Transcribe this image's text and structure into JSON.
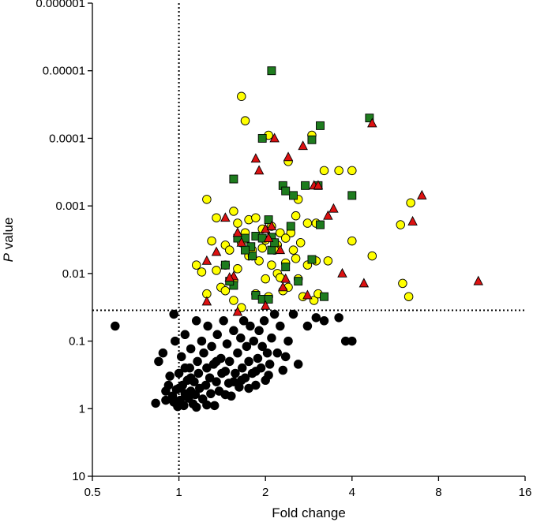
{
  "chart_data": {
    "type": "scatter",
    "title": "",
    "xlabel": "Fold change",
    "ylabel_italic": "P",
    "ylabel_rest": " value",
    "x_scale": "log2",
    "y_scale": "log10-reversed",
    "xlim": [
      0.5,
      16
    ],
    "ylim": [
      10,
      1e-06
    ],
    "x_ticks": [
      0.5,
      1,
      2,
      4,
      8,
      16
    ],
    "x_tick_labels": [
      "0.5",
      "1",
      "2",
      "4",
      "8",
      "16"
    ],
    "y_ticks": [
      10,
      1,
      0.1,
      0.01,
      0.001,
      0.0001,
      1e-05,
      1e-06
    ],
    "y_tick_labels": [
      "10",
      "1",
      "0.1",
      "0.01",
      "0.001",
      "0.0001",
      "0.00001",
      "0.000001"
    ],
    "thresholds": {
      "fold_change": 1,
      "p_value": 0.035
    },
    "grid": false,
    "legend": "none",
    "series": [
      {
        "marker": "circle",
        "color": "#000000",
        "points": [
          [
            0.6,
            0.06
          ],
          [
            0.83,
            0.83
          ],
          [
            0.85,
            0.2
          ],
          [
            0.88,
            0.15
          ],
          [
            0.9,
            0.75
          ],
          [
            0.92,
            0.45
          ],
          [
            0.93,
            0.33
          ],
          [
            0.95,
            0.65
          ],
          [
            0.96,
            0.04
          ],
          [
            0.96,
            0.8
          ],
          [
            0.97,
            0.1
          ],
          [
            0.98,
            0.52
          ],
          [
            0.99,
            0.93
          ],
          [
            1.0,
            0.3
          ],
          [
            1.01,
            0.75
          ],
          [
            1.02,
            0.17
          ],
          [
            1.03,
            0.45
          ],
          [
            1.04,
            0.9
          ],
          [
            1.05,
            0.6
          ],
          [
            1.05,
            0.08
          ],
          [
            1.07,
            0.38
          ],
          [
            1.08,
            0.7
          ],
          [
            1.09,
            0.25
          ],
          [
            1.1,
            0.55
          ],
          [
            1.1,
            0.13
          ],
          [
            1.12,
            0.85
          ],
          [
            1.13,
            0.4
          ],
          [
            1.14,
            0.62
          ],
          [
            1.15,
            0.05
          ],
          [
            1.16,
            0.2
          ],
          [
            1.17,
            0.3
          ],
          [
            1.18,
            0.5
          ],
          [
            1.2,
            0.1
          ],
          [
            1.21,
            0.72
          ],
          [
            1.22,
            0.15
          ],
          [
            1.24,
            0.45
          ],
          [
            1.25,
            0.25
          ],
          [
            1.26,
            0.06
          ],
          [
            1.28,
            0.35
          ],
          [
            1.29,
            0.6
          ],
          [
            1.3,
            0.12
          ],
          [
            1.32,
            0.22
          ],
          [
            1.33,
            0.9
          ],
          [
            1.35,
            0.4
          ],
          [
            1.36,
            0.08
          ],
          [
            1.38,
            0.55
          ],
          [
            1.4,
            0.18
          ],
          [
            1.41,
            0.3
          ],
          [
            1.43,
            0.05
          ],
          [
            1.45,
            0.28
          ],
          [
            1.47,
            0.11
          ],
          [
            1.49,
            0.42
          ],
          [
            1.5,
            0.2
          ],
          [
            1.52,
            0.65
          ],
          [
            1.55,
            0.07
          ],
          [
            1.57,
            0.3
          ],
          [
            1.6,
            0.15
          ],
          [
            1.62,
            0.48
          ],
          [
            1.64,
            0.09
          ],
          [
            1.66,
            0.25
          ],
          [
            1.68,
            0.05
          ],
          [
            1.7,
            0.35
          ],
          [
            1.72,
            0.12
          ],
          [
            1.75,
            0.2
          ],
          [
            1.77,
            0.06
          ],
          [
            1.8,
            0.3
          ],
          [
            1.82,
            0.1
          ],
          [
            1.85,
            0.45
          ],
          [
            1.88,
            0.18
          ],
          [
            1.9,
            0.07
          ],
          [
            1.93,
            0.25
          ],
          [
            1.95,
            0.12
          ],
          [
            1.98,
            0.05
          ],
          [
            2.0,
            0.38
          ],
          [
            2.03,
            0.15
          ],
          [
            2.07,
            0.22
          ],
          [
            2.1,
            0.09
          ],
          [
            2.15,
            0.04
          ],
          [
            2.2,
            0.15
          ],
          [
            2.25,
            0.06
          ],
          [
            2.3,
            0.27
          ],
          [
            2.4,
            0.1
          ],
          [
            2.5,
            0.04
          ],
          [
            2.6,
            0.22
          ],
          [
            2.8,
            0.06
          ],
          [
            3.0,
            0.045
          ],
          [
            3.2,
            0.05
          ],
          [
            3.6,
            0.045
          ],
          [
            3.8,
            0.1
          ],
          [
            4.0,
            0.1
          ],
          [
            1.25,
            0.88
          ],
          [
            1.45,
            0.62
          ],
          [
            1.65,
            0.38
          ],
          [
            1.85,
            0.28
          ],
          [
            2.05,
            0.32
          ],
          [
            2.35,
            0.17
          ],
          [
            1.0,
            0.5
          ],
          [
            1.1,
            0.35
          ],
          [
            1.35,
            0.2
          ],
          [
            1.55,
            0.4
          ],
          [
            1.75,
            0.5
          ],
          [
            0.9,
            0.55
          ],
          [
            1.15,
            0.95
          ],
          [
            1.05,
            0.25
          ]
        ]
      },
      {
        "marker": "circle",
        "color": "#ffff00",
        "points": [
          [
            1.65,
            2.4e-05
          ],
          [
            1.7,
            5.5e-05
          ],
          [
            2.05,
            9e-05
          ],
          [
            2.9,
            9e-05
          ],
          [
            2.4,
            0.00022
          ],
          [
            3.2,
            0.0003
          ],
          [
            3.6,
            0.0003
          ],
          [
            4.0,
            0.0003
          ],
          [
            1.25,
            0.0008
          ],
          [
            1.35,
            0.0015
          ],
          [
            1.55,
            0.0012
          ],
          [
            1.6,
            0.0018
          ],
          [
            1.75,
            0.0016
          ],
          [
            1.85,
            0.0015
          ],
          [
            1.95,
            0.0022
          ],
          [
            2.1,
            0.002
          ],
          [
            2.25,
            0.0025
          ],
          [
            2.45,
            0.0025
          ],
          [
            2.55,
            0.0014
          ],
          [
            2.6,
            0.0008
          ],
          [
            2.8,
            0.0018
          ],
          [
            3.0,
            0.0018
          ],
          [
            2.0,
            0.0032
          ],
          [
            2.2,
            0.0038
          ],
          [
            2.35,
            0.003
          ],
          [
            1.3,
            0.0033
          ],
          [
            1.45,
            0.0038
          ],
          [
            1.65,
            0.0035
          ],
          [
            1.8,
            0.0045
          ],
          [
            1.95,
            0.0042
          ],
          [
            1.15,
            0.0075
          ],
          [
            1.2,
            0.0095
          ],
          [
            1.35,
            0.009
          ],
          [
            1.45,
            0.0075
          ],
          [
            1.6,
            0.0085
          ],
          [
            1.75,
            0.0055
          ],
          [
            1.9,
            0.0065
          ],
          [
            2.1,
            0.0075
          ],
          [
            2.2,
            0.01
          ],
          [
            2.35,
            0.007
          ],
          [
            2.55,
            0.006
          ],
          [
            2.8,
            0.0075
          ],
          [
            3.0,
            0.0065
          ],
          [
            2.0,
            0.012
          ],
          [
            2.25,
            0.0115
          ],
          [
            1.4,
            0.016
          ],
          [
            1.55,
            0.013
          ],
          [
            2.4,
            0.016
          ],
          [
            2.6,
            0.012
          ],
          [
            1.25,
            0.02
          ],
          [
            1.45,
            0.018
          ],
          [
            1.55,
            0.025
          ],
          [
            1.65,
            0.032
          ],
          [
            2.05,
            0.022
          ],
          [
            2.3,
            0.018
          ],
          [
            2.7,
            0.022
          ],
          [
            2.95,
            0.025
          ],
          [
            3.05,
            0.02
          ],
          [
            1.85,
            0.02
          ],
          [
            4.0,
            0.0033
          ],
          [
            4.7,
            0.0055
          ],
          [
            5.9,
            0.0019
          ],
          [
            6.4,
            0.0009
          ],
          [
            6.0,
            0.014
          ],
          [
            6.3,
            0.022
          ],
          [
            2.15,
            0.0045
          ],
          [
            1.8,
            0.0055
          ],
          [
            2.5,
            0.0045
          ],
          [
            3.3,
            0.0065
          ],
          [
            1.7,
            0.0025
          ],
          [
            2.65,
            0.0035
          ],
          [
            1.5,
            0.0045
          ]
        ]
      },
      {
        "marker": "square",
        "color": "#1e7c1e",
        "points": [
          [
            2.1,
            1e-05
          ],
          [
            4.6,
            5e-05
          ],
          [
            3.1,
            6.5e-05
          ],
          [
            2.9,
            0.000105
          ],
          [
            1.95,
            0.0001
          ],
          [
            1.55,
            0.0004
          ],
          [
            2.3,
            0.0005
          ],
          [
            2.75,
            0.0005
          ],
          [
            3.05,
            0.0005
          ],
          [
            2.5,
            0.0007
          ],
          [
            2.35,
            0.0006
          ],
          [
            4.0,
            0.0007
          ],
          [
            2.05,
            0.0016
          ],
          [
            2.45,
            0.002
          ],
          [
            3.1,
            0.0019
          ],
          [
            1.6,
            0.003
          ],
          [
            1.7,
            0.003
          ],
          [
            1.85,
            0.0028
          ],
          [
            1.95,
            0.003
          ],
          [
            2.1,
            0.0029
          ],
          [
            1.78,
            0.004
          ],
          [
            1.8,
            0.0055
          ],
          [
            2.1,
            0.0045
          ],
          [
            2.9,
            0.0062
          ],
          [
            1.45,
            0.0075
          ],
          [
            1.55,
            0.015
          ],
          [
            2.35,
            0.008
          ],
          [
            2.6,
            0.013
          ],
          [
            3.2,
            0.022
          ],
          [
            1.85,
            0.021
          ],
          [
            1.95,
            0.024
          ],
          [
            2.05,
            0.024
          ],
          [
            1.5,
            0.013
          ],
          [
            2.15,
            0.0035
          ],
          [
            1.7,
            0.0045
          ]
        ]
      },
      {
        "marker": "triangle",
        "color": "#dd1111",
        "points": [
          [
            4.7,
            6e-05
          ],
          [
            2.15,
            0.0001
          ],
          [
            1.85,
            0.0002
          ],
          [
            1.9,
            0.0003
          ],
          [
            2.4,
            0.00019
          ],
          [
            2.7,
            0.00013
          ],
          [
            2.95,
            0.0005
          ],
          [
            3.05,
            0.0005
          ],
          [
            3.45,
            0.0011
          ],
          [
            3.3,
            0.0014
          ],
          [
            7.0,
            0.0007
          ],
          [
            6.5,
            0.0017
          ],
          [
            1.45,
            0.0015
          ],
          [
            1.6,
            0.0025
          ],
          [
            1.65,
            0.0035
          ],
          [
            2.0,
            0.0022
          ],
          [
            2.1,
            0.002
          ],
          [
            2.25,
            0.0045
          ],
          [
            2.05,
            0.003
          ],
          [
            1.35,
            0.0048
          ],
          [
            1.25,
            0.0065
          ],
          [
            1.55,
            0.011
          ],
          [
            1.5,
            0.0115
          ],
          [
            2.35,
            0.012
          ],
          [
            2.3,
            0.016
          ],
          [
            2.8,
            0.021
          ],
          [
            3.7,
            0.01
          ],
          [
            4.4,
            0.014
          ],
          [
            11,
            0.013
          ],
          [
            1.25,
            0.026
          ],
          [
            1.6,
            0.037
          ],
          [
            2.0,
            0.03
          ]
        ]
      }
    ]
  }
}
